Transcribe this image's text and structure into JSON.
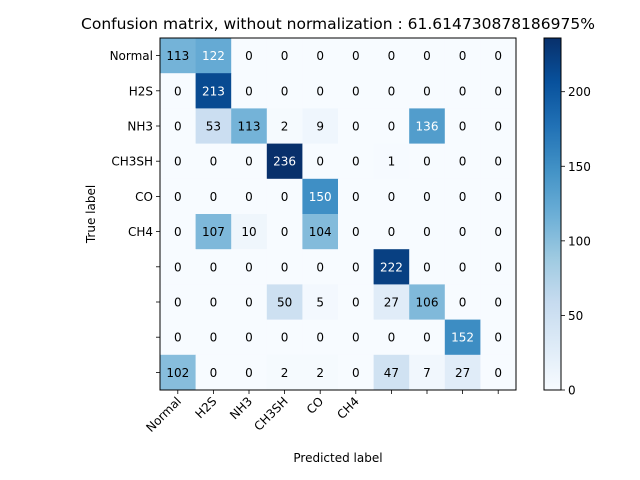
{
  "chart_data": {
    "type": "heatmap",
    "title": "Confusion matrix, without normalization : 61.614730878186975%",
    "xlabel": "Predicted label",
    "ylabel": "True label",
    "x_tick_labels": [
      "Normal",
      "H2S",
      "NH3",
      "CH3SH",
      "CO",
      "CH4",
      "",
      "",
      "",
      ""
    ],
    "y_tick_labels": [
      "Normal",
      "H2S",
      "NH3",
      "CH3SH",
      "CO",
      "CH4",
      "",
      "",
      "",
      ""
    ],
    "matrix": [
      [
        113,
        122,
        0,
        0,
        0,
        0,
        0,
        0,
        0,
        0
      ],
      [
        0,
        213,
        0,
        0,
        0,
        0,
        0,
        0,
        0,
        0
      ],
      [
        0,
        53,
        113,
        2,
        9,
        0,
        0,
        136,
        0,
        0
      ],
      [
        0,
        0,
        0,
        236,
        0,
        0,
        1,
        0,
        0,
        0
      ],
      [
        0,
        0,
        0,
        0,
        150,
        0,
        0,
        0,
        0,
        0
      ],
      [
        0,
        107,
        10,
        0,
        104,
        0,
        0,
        0,
        0,
        0
      ],
      [
        0,
        0,
        0,
        0,
        0,
        0,
        222,
        0,
        0,
        0
      ],
      [
        0,
        0,
        0,
        50,
        5,
        0,
        27,
        106,
        0,
        0
      ],
      [
        0,
        0,
        0,
        0,
        0,
        0,
        0,
        0,
        152,
        0
      ],
      [
        102,
        0,
        0,
        2,
        2,
        0,
        47,
        7,
        27,
        0
      ]
    ],
    "colormap": "Blues",
    "colorbar": {
      "range": [
        0,
        236
      ],
      "ticks": [
        "0",
        "50",
        "100",
        "150",
        "200"
      ]
    },
    "text_color_dark": "#000000",
    "text_color_light": "#ffffff",
    "grid": false
  }
}
